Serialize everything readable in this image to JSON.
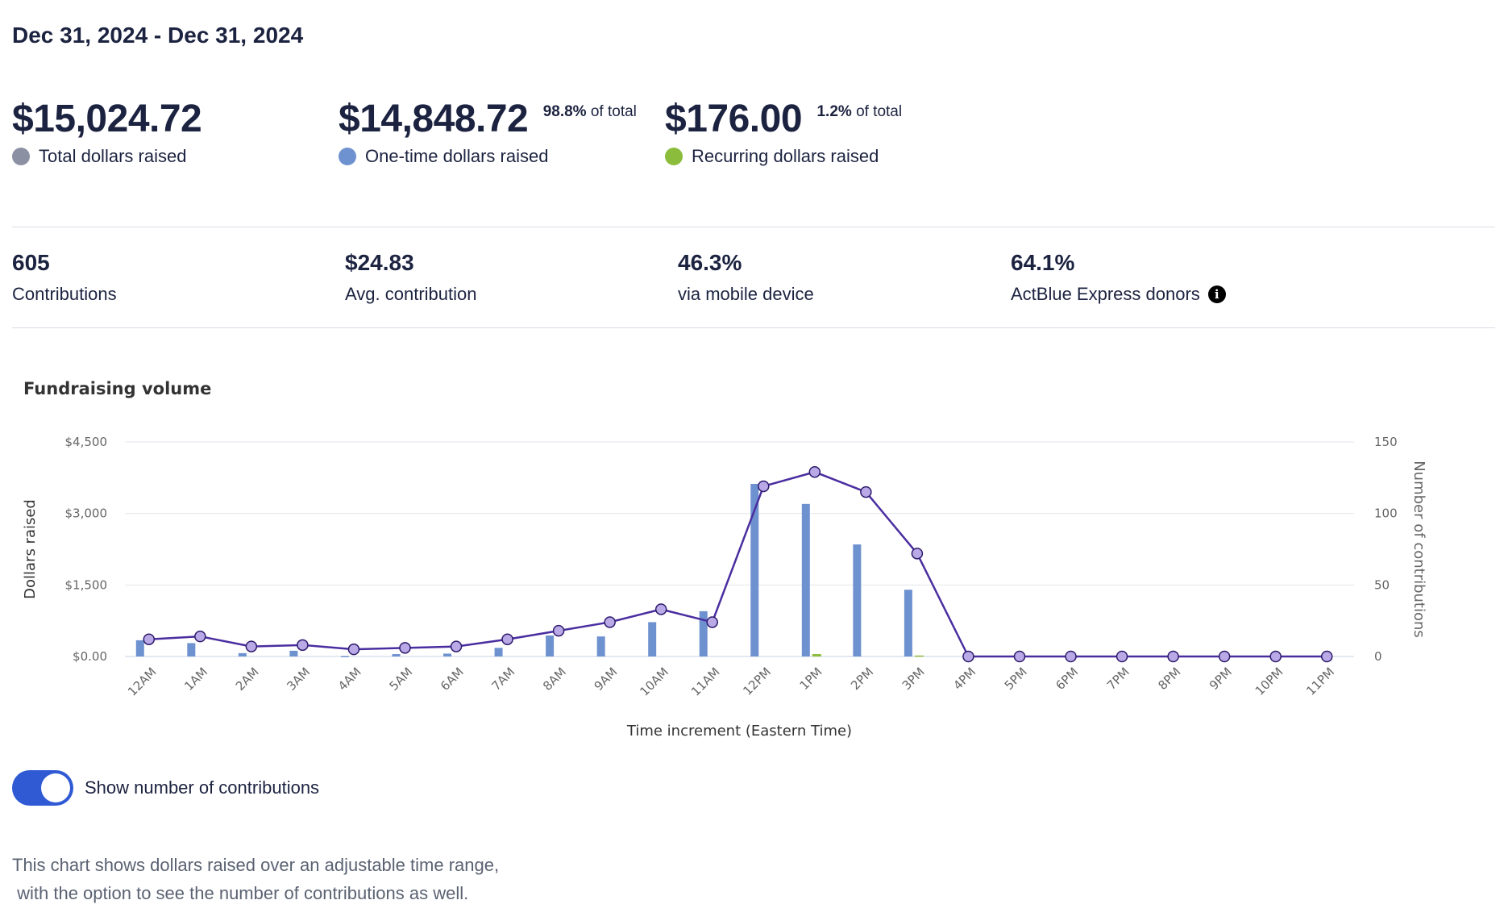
{
  "header": {
    "date_range": "Dec 31, 2024 - Dec 31, 2024"
  },
  "totals": [
    {
      "amount": "$15,024.72",
      "pct": "",
      "pct_suffix": "",
      "label": "Total dollars raised",
      "dot_color": "#8b90a3"
    },
    {
      "amount": "$14,848.72",
      "pct": "98.8%",
      "pct_suffix": "of total",
      "label": "One-time dollars raised",
      "dot_color": "#6e91cf"
    },
    {
      "amount": "$176.00",
      "pct": "1.2%",
      "pct_suffix": "of total",
      "label": "Recurring dollars raised",
      "dot_color": "#8cbc3c"
    }
  ],
  "stats": [
    {
      "value": "605",
      "label": "Contributions"
    },
    {
      "value": "$24.83",
      "label": "Avg. contribution"
    },
    {
      "value": "46.3%",
      "label": "via mobile device"
    },
    {
      "value": "64.1%",
      "label": "ActBlue Express donors"
    }
  ],
  "info_icon": "info-circle-icon",
  "chart_section": {
    "title": "Fundraising volume"
  },
  "chart_data": {
    "type": "bar",
    "title": "Fundraising volume",
    "xlabel": "Time increment (Eastern Time)",
    "ylabel": "Dollars raised",
    "y2label": "Number of contributions",
    "ylim": [
      0,
      4500
    ],
    "y2lim": [
      0,
      150
    ],
    "yticks": [
      "$0.00",
      "$1,500",
      "$3,000",
      "$4,500"
    ],
    "ytick_values": [
      0,
      1500,
      3000,
      4500
    ],
    "y2ticks": [
      "0",
      "50",
      "100",
      "150"
    ],
    "y2tick_values": [
      0,
      50,
      100,
      150
    ],
    "grid": true,
    "categories": [
      "12AM",
      "1AM",
      "2AM",
      "3AM",
      "4AM",
      "5AM",
      "6AM",
      "7AM",
      "8AM",
      "9AM",
      "10AM",
      "11AM",
      "12PM",
      "1PM",
      "2PM",
      "3PM",
      "4PM",
      "5PM",
      "6PM",
      "7PM",
      "8PM",
      "9PM",
      "10PM",
      "11PM"
    ],
    "series": [
      {
        "kind": "bar",
        "color": "#6e91cf",
        "values": [
          340,
          280,
          70,
          120,
          10,
          50,
          60,
          180,
          440,
          420,
          720,
          950,
          3620,
          3200,
          2350,
          1400,
          0,
          0,
          0,
          0,
          0,
          0,
          0,
          0
        ]
      },
      {
        "kind": "bar",
        "color": "#8cbc3c",
        "values": [
          0,
          0,
          0,
          0,
          0,
          0,
          0,
          0,
          0,
          0,
          0,
          0,
          0,
          50,
          0,
          20,
          0,
          0,
          0,
          0,
          0,
          0,
          0,
          0
        ]
      },
      {
        "kind": "line",
        "axis": "right",
        "color": "#4a2ea0",
        "marker_fill": "#b9a9e6",
        "values": [
          12,
          14,
          7,
          8,
          5,
          6,
          7,
          12,
          18,
          24,
          33,
          24,
          119,
          129,
          115,
          72,
          0,
          0,
          0,
          0,
          0,
          0,
          0,
          0
        ]
      }
    ]
  },
  "toggle": {
    "label": "Show number of contributions",
    "on": true
  },
  "caption": "This chart shows dollars raised over an adjustable time range,\n with the option to see the number of contributions as well."
}
